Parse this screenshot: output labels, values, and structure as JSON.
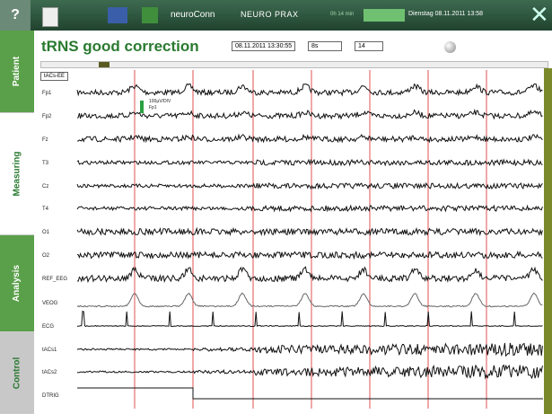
{
  "toolbar": {
    "help": "?",
    "brand": "neuroConn",
    "product": "NEURO PRAX",
    "elapsed": "0h 14 min",
    "datetime": "Dienstag  08.11.2011  13:58"
  },
  "tabs": [
    "Patient",
    "Measuring",
    "Analysis",
    "Control"
  ],
  "header": {
    "title": "tRNS good  correction",
    "timestamp": "08.11.2011 13:30:55",
    "window": "8s",
    "channels_shown": "14"
  },
  "montage": "tACs-EE",
  "scale": {
    "label": "100µV/DIV",
    "channel": "Fp1"
  },
  "channels": [
    "Fp1",
    "Fp2",
    "Fz",
    "T3",
    "Cz",
    "T4",
    "O1",
    "O2",
    "REF_EEG",
    "VEOG",
    "ECG",
    "tACs1",
    "tACs2",
    "DTRIG"
  ]
}
